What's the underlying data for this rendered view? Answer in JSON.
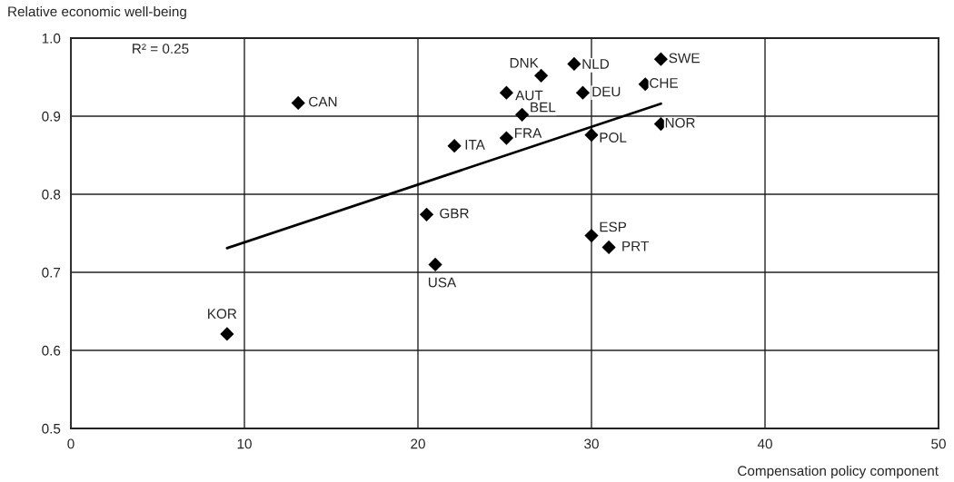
{
  "chart_data": {
    "type": "scatter",
    "xlabel": "Compensation policy component",
    "ylabel": "Relative economic well-being",
    "annotations": [
      "R² = 0.25"
    ],
    "series": [
      {
        "color": "#000000",
        "marker": "diamond",
        "x": [
          13.1,
          22.1,
          20.5,
          21.0,
          9.0,
          27.1,
          29.0,
          34.0,
          25.1,
          29.5,
          33.1,
          26.0,
          34.0,
          25.1,
          30.0,
          30.0,
          31.0
        ],
        "values": [
          0.917,
          0.862,
          0.774,
          0.71,
          0.621,
          0.952,
          0.967,
          0.973,
          0.93,
          0.93,
          0.941,
          0.902,
          0.89,
          0.872,
          0.876,
          0.747,
          0.732
        ],
        "value_labels": [
          "CAN",
          "ITA",
          "GBR",
          "USA",
          "KOR",
          "DNK",
          "NLD",
          "SWE",
          "AUT",
          "DEU",
          "CHE",
          "BEL",
          "NOR",
          "FRA",
          "POL",
          "ESP",
          "PRT"
        ]
      },
      {
        "type": "line",
        "color": "#000000",
        "x": [
          9.0,
          34.0
        ],
        "values": [
          0.731,
          0.916
        ]
      }
    ],
    "xlim": [
      0,
      50
    ],
    "xticks": [
      0,
      10,
      20,
      30,
      40,
      50
    ],
    "ylim": [
      0.5,
      1.0
    ],
    "yticks": [
      0.5,
      0.6,
      0.7,
      0.8,
      0.9,
      {
        "value": 1.0,
        "label": "1.0"
      }
    ],
    "grid": true
  }
}
